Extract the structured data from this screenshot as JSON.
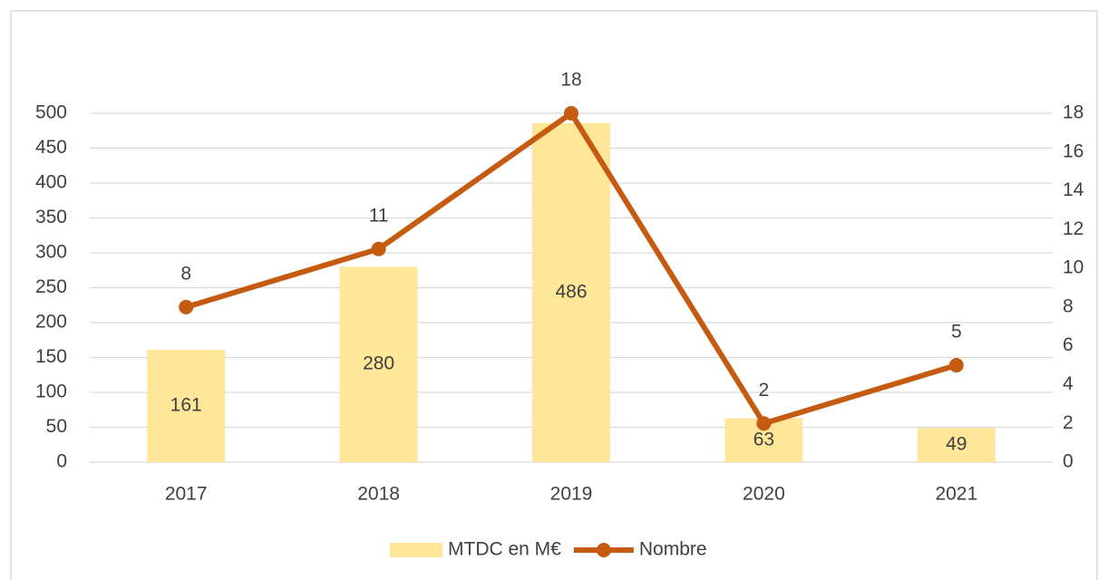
{
  "chart_data": {
    "type": "combo",
    "categories": [
      "2017",
      "2018",
      "2019",
      "2020",
      "2021"
    ],
    "series": [
      {
        "name": "MTDC en M€",
        "type": "bar",
        "color": "#ffe699",
        "values": [
          161,
          280,
          486,
          63,
          49
        ]
      },
      {
        "name": "Nombre",
        "type": "line",
        "axis": "y2",
        "color": "#c55a11",
        "values": [
          8,
          11,
          18,
          2,
          5
        ]
      }
    ],
    "ylim": [
      0,
      500
    ],
    "yticks": [
      0,
      50,
      100,
      150,
      200,
      250,
      300,
      350,
      400,
      450,
      500
    ],
    "y2lim": [
      0,
      18
    ],
    "y2ticks": [
      0,
      2,
      4,
      6,
      8,
      10,
      12,
      14,
      16,
      18
    ],
    "grid": true,
    "legend": "bottom"
  }
}
